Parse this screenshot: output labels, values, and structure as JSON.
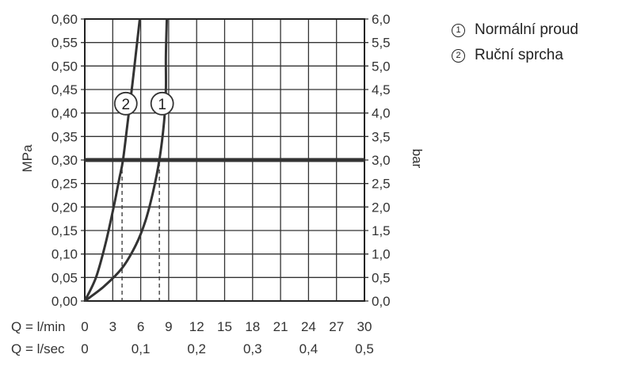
{
  "chart_data": {
    "type": "line",
    "ylabel_left": "MPa",
    "ylabel_right": "bar",
    "x_primary_label": "Q = l/min",
    "x_secondary_label": "Q = l/sec",
    "x_ticks": [
      "0",
      "3",
      "6",
      "9",
      "12",
      "15",
      "18",
      "21",
      "24",
      "27",
      "30"
    ],
    "x_secondary_ticks": [
      {
        "at": 0,
        "label": "0"
      },
      {
        "at": 6,
        "label": "0,1"
      },
      {
        "at": 12,
        "label": "0,2"
      },
      {
        "at": 18,
        "label": "0,3"
      },
      {
        "at": 24,
        "label": "0,4"
      },
      {
        "at": 30,
        "label": "0,5"
      }
    ],
    "y_left_ticks": [
      "0,00",
      "0,05",
      "0,10",
      "0,15",
      "0,20",
      "0,25",
      "0,30",
      "0,35",
      "0,40",
      "0,45",
      "0,50",
      "0,55",
      "0,60"
    ],
    "y_right_ticks": [
      "0,0",
      "0,5",
      "1,0",
      "1,5",
      "2,0",
      "2,5",
      "3,0",
      "3,5",
      "4,0",
      "4,5",
      "5,0",
      "5,5",
      "6,0"
    ],
    "xlim": [
      0,
      30
    ],
    "ylim": [
      0,
      0.6
    ],
    "grid": true,
    "reference_line": {
      "y": 0.3
    },
    "series": [
      {
        "marker": "1",
        "marker_at": [
          8.3,
          0.42
        ],
        "drop_x": 8.0,
        "points": [
          [
            0,
            0
          ],
          [
            2,
            0.03
          ],
          [
            4,
            0.07
          ],
          [
            5.5,
            0.12
          ],
          [
            6.5,
            0.17
          ],
          [
            7.3,
            0.23
          ],
          [
            8.0,
            0.3
          ],
          [
            8.5,
            0.38
          ],
          [
            8.7,
            0.45
          ],
          [
            8.7,
            0.52
          ],
          [
            8.8,
            0.6
          ]
        ]
      },
      {
        "marker": "2",
        "marker_at": [
          4.4,
          0.42
        ],
        "drop_x": 4.0,
        "points": [
          [
            0,
            0
          ],
          [
            1.2,
            0.05
          ],
          [
            2.2,
            0.12
          ],
          [
            3.1,
            0.2
          ],
          [
            3.7,
            0.26
          ],
          [
            4.1,
            0.3
          ],
          [
            4.6,
            0.38
          ],
          [
            5.1,
            0.46
          ],
          [
            5.5,
            0.53
          ],
          [
            5.9,
            0.6
          ]
        ]
      }
    ]
  },
  "legend": [
    {
      "num": "1",
      "label": "Normální proud"
    },
    {
      "num": "2",
      "label": "Ruční sprcha"
    }
  ]
}
